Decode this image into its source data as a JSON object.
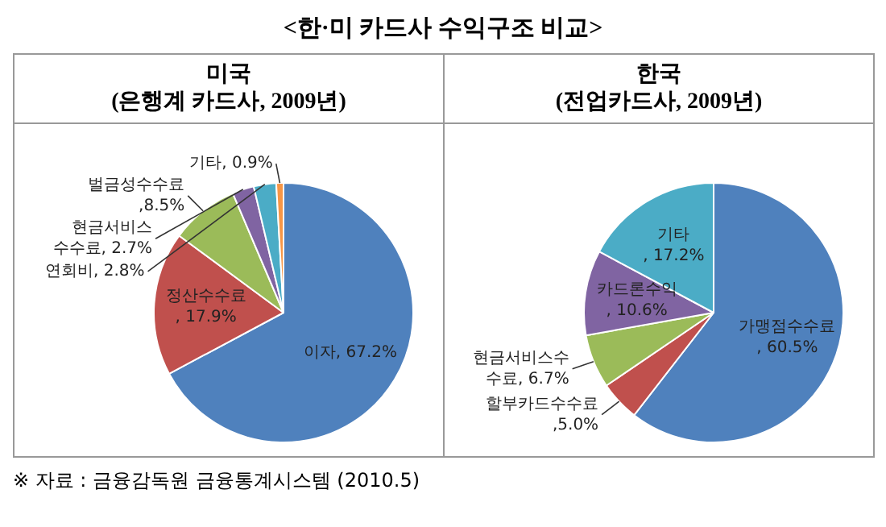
{
  "chart_data": [
    {
      "type": "pie",
      "title": "미국",
      "subtitle": "(은행계 카드사, 2009년)",
      "annotations": [
        "<한·미 카드사 수익구조 비교>",
        "※ 자료 : 금융감독원 금융통계시스템 (2010.5)"
      ],
      "categories": [
        "이자",
        "정산수수료",
        "벌금성수수료",
        "현금서비스 수수료",
        "연회비",
        "기타"
      ],
      "values": [
        67.2,
        17.9,
        8.5,
        2.7,
        2.8,
        0.9
      ],
      "value_labels": [
        ", 67.2%",
        ", 17.9%",
        ",8.5%",
        ", 2.7%",
        ", 2.8%",
        ", 0.9%"
      ],
      "colors": [
        "#4f81bd",
        "#c0504d",
        "#9bbb59",
        "#8064a2",
        "#4bacc6",
        "#f79646"
      ]
    },
    {
      "type": "pie",
      "title": "한국",
      "subtitle": "(전업카드사, 2009년)",
      "categories": [
        "가맹점수수료",
        "할부카드수수료",
        "현금서비스수수료",
        "카드론수익",
        "기타"
      ],
      "values": [
        60.5,
        5.0,
        6.7,
        10.6,
        17.2
      ],
      "value_labels": [
        ", 60.5%",
        ",5.0%",
        ", 6.7%",
        ", 10.6%",
        ", 17.2%"
      ],
      "colors": [
        "#4f81bd",
        "#c0504d",
        "#9bbb59",
        "#8064a2",
        "#4bacc6"
      ]
    }
  ]
}
